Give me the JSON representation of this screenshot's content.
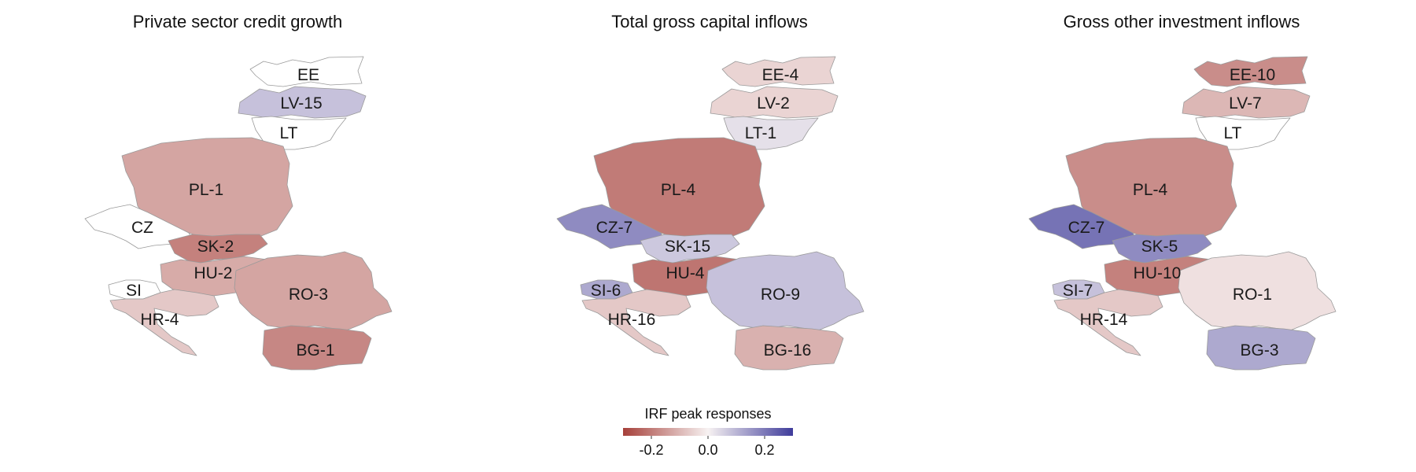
{
  "panels": [
    {
      "title": "Private sector credit growth",
      "regions": [
        {
          "code": "EE",
          "label": "EE",
          "response": null
        },
        {
          "code": "LV",
          "label": "LV-15",
          "response": 0.08
        },
        {
          "code": "LT",
          "label": "LT",
          "response": null
        },
        {
          "code": "PL",
          "label": "PL-1",
          "response": -0.13
        },
        {
          "code": "CZ",
          "label": "CZ",
          "response": null
        },
        {
          "code": "SK",
          "label": "SK-2",
          "response": -0.19
        },
        {
          "code": "HU",
          "label": "HU-2",
          "response": -0.12
        },
        {
          "code": "SI",
          "label": "SI",
          "response": null
        },
        {
          "code": "HR",
          "label": "HR-4",
          "response": -0.07
        },
        {
          "code": "RO",
          "label": "RO-3",
          "response": -0.13
        },
        {
          "code": "BG",
          "label": "BG-1",
          "response": -0.18
        }
      ]
    },
    {
      "title": "Total gross capital inflows",
      "regions": [
        {
          "code": "EE",
          "label": "EE-4",
          "response": -0.05
        },
        {
          "code": "LV",
          "label": "LV-2",
          "response": -0.05
        },
        {
          "code": "LT",
          "label": "LT-1",
          "response": 0.03
        },
        {
          "code": "PL",
          "label": "PL-4",
          "response": -0.2
        },
        {
          "code": "CZ",
          "label": "CZ-7",
          "response": 0.17
        },
        {
          "code": "SK",
          "label": "SK-15",
          "response": 0.07
        },
        {
          "code": "HU",
          "label": "HU-4",
          "response": -0.21
        },
        {
          "code": "SI",
          "label": "SI-6",
          "response": 0.12
        },
        {
          "code": "HR",
          "label": "HR-16",
          "response": -0.07
        },
        {
          "code": "RO",
          "label": "RO-9",
          "response": 0.08
        },
        {
          "code": "BG",
          "label": "BG-16",
          "response": -0.11
        }
      ]
    },
    {
      "title": "Gross other investment inflows",
      "regions": [
        {
          "code": "EE",
          "label": "EE-10",
          "response": -0.17
        },
        {
          "code": "LV",
          "label": "LV-7",
          "response": -0.1
        },
        {
          "code": "LT",
          "label": "LT",
          "response": null
        },
        {
          "code": "PL",
          "label": "PL-4",
          "response": -0.17
        },
        {
          "code": "CZ",
          "label": "CZ-7",
          "response": 0.21
        },
        {
          "code": "SK",
          "label": "SK-5",
          "response": 0.17
        },
        {
          "code": "HU",
          "label": "HU-10",
          "response": -0.19
        },
        {
          "code": "SI",
          "label": "SI-7",
          "response": 0.08
        },
        {
          "code": "HR",
          "label": "HR-14",
          "response": -0.07
        },
        {
          "code": "RO",
          "label": "RO-1",
          "response": -0.03
        },
        {
          "code": "BG",
          "label": "BG-3",
          "response": 0.12
        }
      ]
    }
  ],
  "legend": {
    "title": "IRF peak responses",
    "tick_labels": [
      "-0.2",
      "0.0",
      "0.2"
    ],
    "tick_values": [
      -0.2,
      0.0,
      0.2
    ],
    "range": [
      -0.3,
      0.3
    ],
    "color_low": "#a6403a",
    "color_mid": "#f7f2f2",
    "color_high": "#3f3c9b"
  },
  "no_data_color": "#ffffff"
}
